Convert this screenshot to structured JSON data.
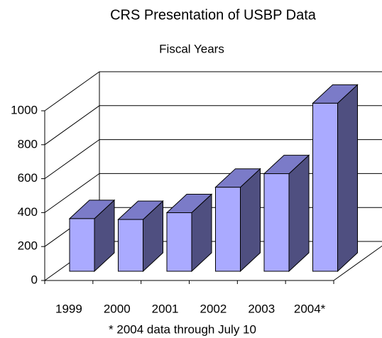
{
  "chart_data": {
    "type": "bar3d",
    "title": "CRS Presentation of USBP Data",
    "subtitle": "Fiscal Years",
    "categories": [
      "1999",
      "2000",
      "2001",
      "2002",
      "2003",
      "2004*"
    ],
    "values": [
      310,
      305,
      345,
      495,
      575,
      990
    ],
    "ylim": [
      0,
      1000
    ],
    "yticks": [
      0,
      200,
      400,
      600,
      800,
      1000
    ],
    "grid": true,
    "colors": {
      "front": "#aaaaff",
      "side": "#4f4f80",
      "top": "#7b7bc8"
    },
    "note": "* 2004 data through July 10"
  }
}
